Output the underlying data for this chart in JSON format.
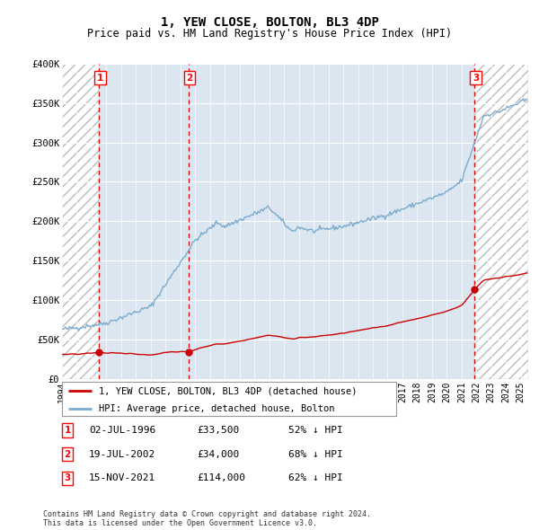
{
  "title": "1, YEW CLOSE, BOLTON, BL3 4DP",
  "subtitle": "Price paid vs. HM Land Registry's House Price Index (HPI)",
  "xlim": [
    1994.0,
    2025.5
  ],
  "ylim": [
    0,
    400000
  ],
  "yticks": [
    0,
    50000,
    100000,
    150000,
    200000,
    250000,
    300000,
    350000,
    400000
  ],
  "ytick_labels": [
    "£0",
    "£50K",
    "£100K",
    "£150K",
    "£200K",
    "£250K",
    "£300K",
    "£350K",
    "£400K"
  ],
  "sale_dates": [
    1996.5,
    2002.55,
    2021.88
  ],
  "sale_prices": [
    33500,
    34000,
    114000
  ],
  "sale_labels": [
    "1",
    "2",
    "3"
  ],
  "sale_date_strings": [
    "02-JUL-1996",
    "19-JUL-2002",
    "15-NOV-2021"
  ],
  "sale_price_strings": [
    "£33,500",
    "£34,000",
    "£114,000"
  ],
  "sale_hpi_strings": [
    "52% ↓ HPI",
    "68% ↓ HPI",
    "62% ↓ HPI"
  ],
  "legend_labels": [
    "1, YEW CLOSE, BOLTON, BL3 4DP (detached house)",
    "HPI: Average price, detached house, Bolton"
  ],
  "footer_text": "Contains HM Land Registry data © Crown copyright and database right 2024.\nThis data is licensed under the Open Government Licence v3.0.",
  "property_color": "#cc0000",
  "hpi_color": "#7aabcf",
  "background_color": "#ffffff",
  "plot_bg_color": "#dce6f0",
  "hatch_color": "#bbbbbb",
  "grid_color": "#ffffff",
  "vline_color": "#dd0000"
}
